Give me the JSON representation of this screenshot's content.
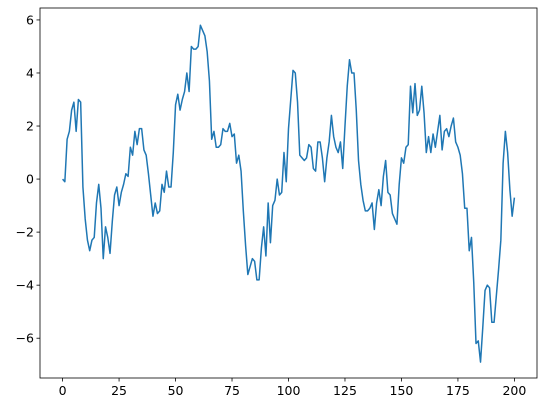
{
  "chart_data": {
    "type": "line",
    "color": "#1f77b4",
    "x": [
      0,
      1,
      2,
      3,
      4,
      5,
      6,
      7,
      8,
      9,
      10,
      11,
      12,
      13,
      14,
      15,
      16,
      17,
      18,
      19,
      20,
      21,
      22,
      23,
      24,
      25,
      26,
      27,
      28,
      29,
      30,
      31,
      32,
      33,
      34,
      35,
      36,
      37,
      38,
      39,
      40,
      41,
      42,
      43,
      44,
      45,
      46,
      47,
      48,
      49,
      50,
      51,
      52,
      53,
      54,
      55,
      56,
      57,
      58,
      59,
      60,
      61,
      62,
      63,
      64,
      65,
      66,
      67,
      68,
      69,
      70,
      71,
      72,
      73,
      74,
      75,
      76,
      77,
      78,
      79,
      80,
      81,
      82,
      83,
      84,
      85,
      86,
      87,
      88,
      89,
      90,
      91,
      92,
      93,
      94,
      95,
      96,
      97,
      98,
      99,
      100,
      101,
      102,
      103,
      104,
      105,
      106,
      107,
      108,
      109,
      110,
      111,
      112,
      113,
      114,
      115,
      116,
      117,
      118,
      119,
      120,
      121,
      122,
      123,
      124,
      125,
      126,
      127,
      128,
      129,
      130,
      131,
      132,
      133,
      134,
      135,
      136,
      137,
      138,
      139,
      140,
      141,
      142,
      143,
      144,
      145,
      146,
      147,
      148,
      149,
      150,
      151,
      152,
      153,
      154,
      155,
      156,
      157,
      158,
      159,
      160,
      161,
      162,
      163,
      164,
      165,
      166,
      167,
      168,
      169,
      170,
      171,
      172,
      173,
      174,
      175,
      176,
      177,
      178,
      179,
      180,
      181,
      182,
      183,
      184,
      185,
      186,
      187,
      188,
      189,
      190,
      191,
      192,
      193,
      194,
      195,
      196,
      197,
      198,
      199,
      200
    ],
    "values": [
      0.0,
      -0.1,
      1.5,
      1.8,
      2.6,
      2.9,
      1.8,
      3.0,
      2.9,
      -0.3,
      -1.5,
      -2.3,
      -2.7,
      -2.3,
      -2.2,
      -0.9,
      -0.2,
      -1.1,
      -3.0,
      -1.8,
      -2.2,
      -2.8,
      -1.6,
      -0.6,
      -0.3,
      -1.0,
      -0.5,
      -0.2,
      0.2,
      0.1,
      1.2,
      0.9,
      1.8,
      1.3,
      1.9,
      1.9,
      1.1,
      0.9,
      0.2,
      -0.6,
      -1.4,
      -0.9,
      -1.3,
      -1.2,
      -0.2,
      -0.5,
      0.3,
      -0.3,
      -0.3,
      1.0,
      2.8,
      3.2,
      2.6,
      3.0,
      3.3,
      4.0,
      3.3,
      5.0,
      4.9,
      4.9,
      5.0,
      5.8,
      5.6,
      5.4,
      4.8,
      3.7,
      1.5,
      1.8,
      1.2,
      1.2,
      1.3,
      1.9,
      1.8,
      1.8,
      2.1,
      1.6,
      1.7,
      0.6,
      0.9,
      0.3,
      -1.2,
      -2.5,
      -3.6,
      -3.3,
      -3.0,
      -3.1,
      -3.8,
      -3.8,
      -2.6,
      -1.8,
      -2.9,
      -0.9,
      -2.4,
      -1.0,
      -0.8,
      0.0,
      -0.6,
      -0.5,
      1.0,
      -0.1,
      1.9,
      3.0,
      4.1,
      4.0,
      2.9,
      0.9,
      0.8,
      0.7,
      0.8,
      1.3,
      1.2,
      0.4,
      0.3,
      1.4,
      1.4,
      0.8,
      -0.1,
      0.8,
      1.4,
      2.4,
      1.6,
      1.2,
      1.0,
      1.4,
      0.4,
      2.0,
      3.5,
      4.5,
      4.0,
      4.0,
      2.6,
      0.7,
      -0.2,
      -0.8,
      -1.2,
      -1.2,
      -1.1,
      -0.9,
      -1.9,
      -0.9,
      -0.4,
      -1.0,
      0.1,
      0.7,
      -0.5,
      -0.6,
      -1.3,
      -1.5,
      -1.7,
      -0.2,
      0.8,
      0.6,
      1.2,
      1.3,
      3.5,
      2.5,
      3.6,
      2.4,
      2.6,
      3.5,
      2.5,
      1.0,
      1.6,
      1.0,
      1.7,
      1.2,
      1.8,
      2.4,
      1.1,
      1.8,
      1.9,
      1.6,
      2.0,
      2.3,
      1.4,
      1.2,
      0.9,
      0.2,
      -1.1,
      -1.1,
      -2.7,
      -2.2,
      -3.9,
      -6.2,
      -6.1,
      -6.9,
      -5.6,
      -4.2,
      -4.0,
      -4.1,
      -5.4,
      -5.4,
      -4.4,
      -3.4,
      -2.3,
      0.6,
      1.8,
      1.0,
      -0.4,
      -1.4,
      -0.7
    ],
    "xlim": [
      -10,
      210
    ],
    "ylim": [
      -7.5,
      6.45
    ],
    "xticks": [
      0,
      25,
      50,
      75,
      100,
      125,
      150,
      175,
      200
    ],
    "yticks": [
      {
        "value": -6,
        "label": "−6"
      },
      {
        "value": -4,
        "label": "−4"
      },
      {
        "value": -2,
        "label": "−2"
      },
      0,
      2,
      4,
      6
    ]
  }
}
